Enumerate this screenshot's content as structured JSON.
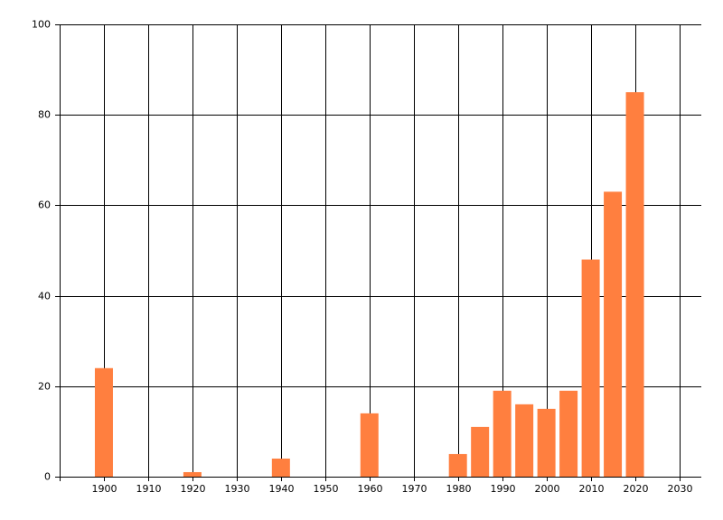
{
  "chart_data": {
    "type": "bar",
    "x": [
      1900,
      1920,
      1940,
      1960,
      1980,
      1985,
      1990,
      1995,
      2000,
      2005,
      2010,
      2015,
      2020
    ],
    "values": [
      24,
      1,
      4,
      14,
      5,
      11,
      19,
      16,
      15,
      19,
      48,
      63,
      85
    ],
    "color": "#ff7f3f",
    "xlim": [
      1890,
      2035
    ],
    "xticks": [
      1900,
      1910,
      1920,
      1930,
      1940,
      1950,
      1960,
      1970,
      1980,
      1990,
      2000,
      2010,
      2020,
      2030
    ],
    "ylim": [
      0,
      100
    ],
    "yticks": [
      0,
      20,
      40,
      60,
      80,
      100
    ],
    "grid": true
  }
}
